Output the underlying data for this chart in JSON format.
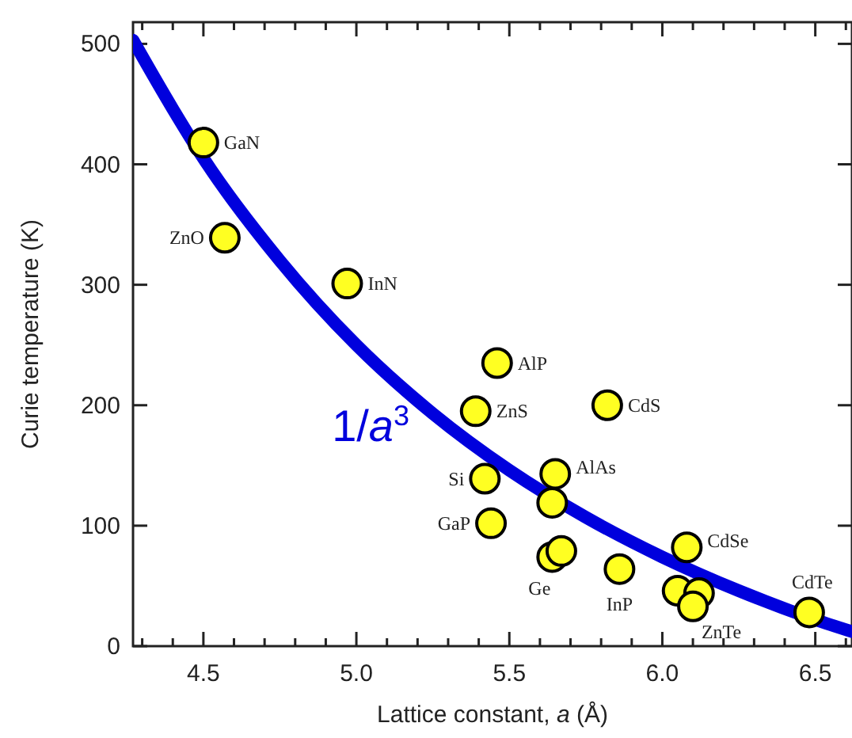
{
  "chart_data": {
    "type": "scatter",
    "xlabel": "Lattice constant, a (Å)",
    "ylabel": "Curie temperature (K)",
    "xlim": [
      4.27,
      6.62
    ],
    "ylim": [
      0,
      518
    ],
    "xticks": [
      {
        "value": 4.3,
        "label": null
      },
      {
        "value": 4.4,
        "label": null
      },
      4.5,
      {
        "value": 4.6,
        "label": null
      },
      {
        "value": 4.7,
        "label": null
      },
      {
        "value": 4.8,
        "label": null
      },
      {
        "value": 4.9,
        "label": null
      },
      {
        "value": 5.0,
        "label": "5.0"
      },
      {
        "value": 5.1,
        "label": null
      },
      {
        "value": 5.2,
        "label": null
      },
      {
        "value": 5.3,
        "label": null
      },
      {
        "value": 5.4,
        "label": null
      },
      5.5,
      {
        "value": 5.6,
        "label": null
      },
      {
        "value": 5.7,
        "label": null
      },
      {
        "value": 5.8,
        "label": null
      },
      {
        "value": 5.9,
        "label": null
      },
      {
        "value": 6.0,
        "label": "6.0"
      },
      {
        "value": 6.1,
        "label": null
      },
      {
        "value": 6.2,
        "label": null
      },
      {
        "value": 6.3,
        "label": null
      },
      {
        "value": 6.4,
        "label": null
      },
      6.5,
      {
        "value": 6.6,
        "label": null
      }
    ],
    "yticks": [
      0,
      100,
      200,
      300,
      400,
      500
    ],
    "grid": false,
    "marker": "circle",
    "series": [
      {
        "type": "line",
        "color": "#0000dd",
        "line_style": "solid",
        "marker": "none",
        "x": [
          4.27,
          4.4,
          4.5,
          4.75,
          5.0,
          5.25,
          5.5,
          5.75,
          6.0,
          6.25,
          6.5,
          6.62
        ],
        "values": [
          503,
          446,
          405,
          320,
          250,
          193,
          146,
          107,
          74,
          46,
          22,
          12
        ]
      },
      {
        "color": "#ffff22",
        "x": [
          4.5,
          4.57,
          4.97,
          5.46,
          5.39,
          5.82,
          5.42,
          5.65,
          5.64,
          5.44,
          5.64,
          5.67,
          5.86,
          6.05,
          6.12,
          6.1,
          6.08,
          6.48
        ],
        "values": [
          418,
          339,
          301,
          235,
          195,
          200,
          139,
          143,
          119,
          102,
          74,
          79,
          64,
          46,
          44,
          33,
          82,
          28
        ]
      }
    ],
    "annotations": [
      {
        "text": "GaN",
        "x": 4.5,
        "y": 418
      },
      {
        "text": "ZnO",
        "x": 4.57,
        "y": 339
      },
      {
        "text": "InN",
        "x": 4.97,
        "y": 301
      },
      {
        "text": "AlP",
        "x": 5.46,
        "y": 235
      },
      {
        "text": "ZnS",
        "x": 5.39,
        "y": 195
      },
      {
        "text": "CdS",
        "x": 5.82,
        "y": 200
      },
      {
        "text": "Si",
        "x": 5.42,
        "y": 139
      },
      {
        "text": "AlAs",
        "x": 5.65,
        "y": 143
      },
      {
        "text": "GaP",
        "x": 5.44,
        "y": 102
      },
      {
        "text": "Ge",
        "x": 5.64,
        "y": 74
      },
      {
        "text": "InP",
        "x": 5.86,
        "y": 64
      },
      {
        "text": "ZnTe",
        "x": 6.1,
        "y": 33
      },
      {
        "text": "CdSe",
        "x": 6.08,
        "y": 82
      },
      {
        "text": "CdTe",
        "x": 6.48,
        "y": 28
      },
      "1/a$^{3}$"
    ]
  }
}
